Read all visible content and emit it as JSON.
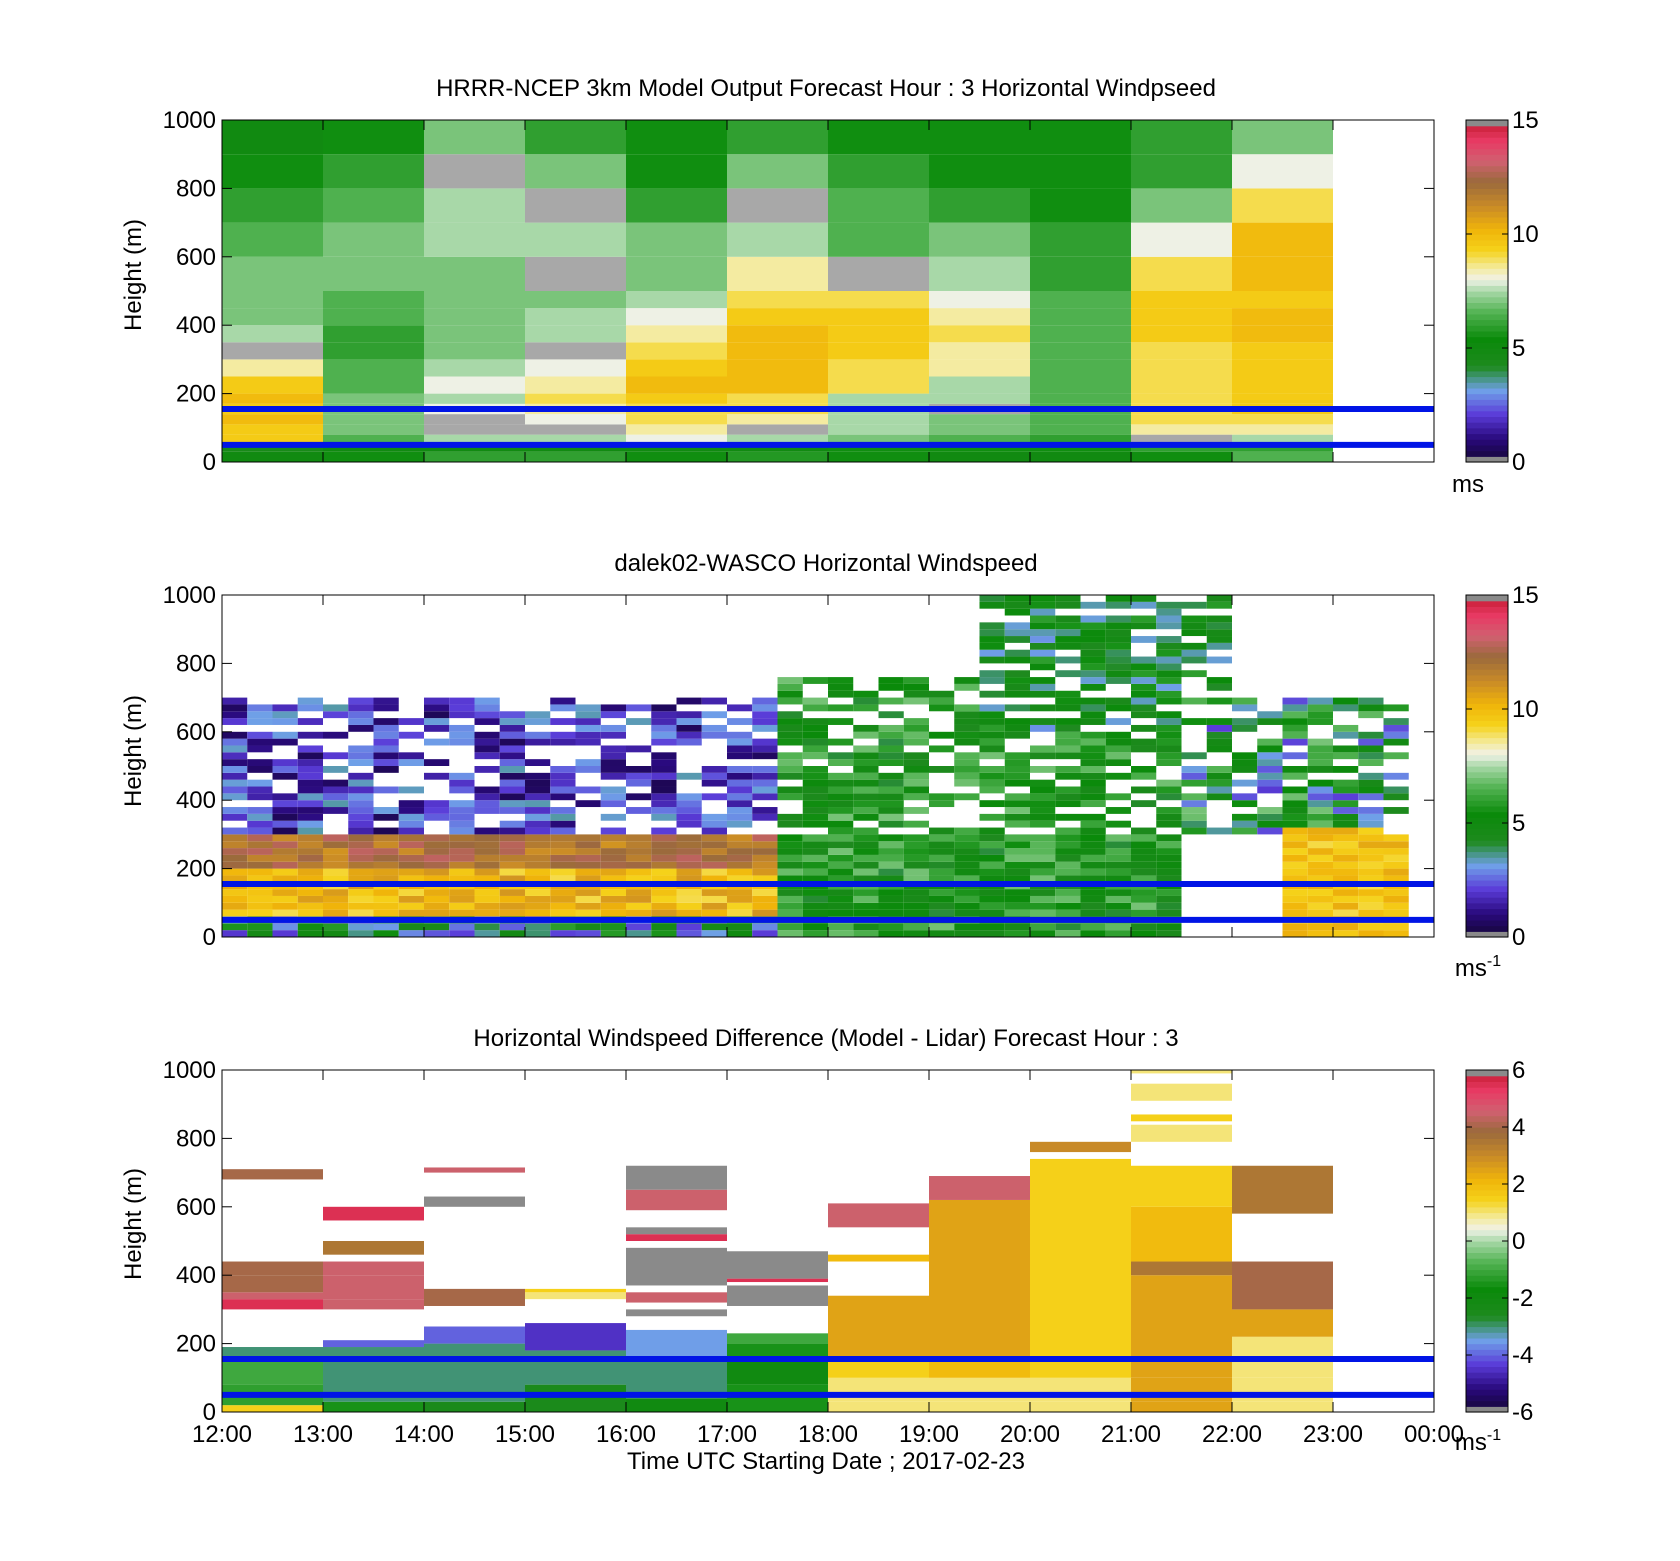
{
  "figure": {
    "xlabel": "Time UTC  Starting Date ; 2017-02-23",
    "x_tick_labels": [
      "12:00",
      "13:00",
      "14:00",
      "15:00",
      "16:00",
      "17:00",
      "18:00",
      "19:00",
      "20:00",
      "21:00",
      "22:00",
      "23:00",
      "00:00"
    ],
    "y_tick_labels": [
      "0",
      "200",
      "400",
      "600",
      "800",
      "1000"
    ],
    "guide_lines_m": [
      50,
      155
    ],
    "guide_line_color": "#0014e6"
  },
  "chart_data": [
    {
      "type": "heatmap",
      "title": "HRRR-NCEP 3km Model Output   Forecast Hour : 3 Horizontal Windpseed",
      "ylabel": "Height (m)",
      "ylim": [
        0,
        1000
      ],
      "xlim": [
        12,
        24
      ],
      "colorbar": {
        "min": 0,
        "max": 15,
        "ticks": [
          "0",
          "5",
          "10",
          "15"
        ],
        "unit": "ms",
        "unit_sup": ""
      },
      "legend": "colorbar-right",
      "grid": false,
      "hours": [
        12,
        13,
        14,
        15,
        16,
        17,
        18,
        19,
        20,
        21,
        22
      ],
      "height_bins_m": [
        [
          0,
          30
        ],
        [
          30,
          50
        ],
        [
          50,
          80
        ],
        [
          80,
          110
        ],
        [
          110,
          140
        ],
        [
          140,
          170
        ],
        [
          170,
          200
        ],
        [
          200,
          250
        ],
        [
          250,
          300
        ],
        [
          300,
          350
        ],
        [
          350,
          400
        ],
        [
          400,
          450
        ],
        [
          450,
          500
        ],
        [
          500,
          600
        ],
        [
          600,
          700
        ],
        [
          700,
          800
        ],
        [
          800,
          900
        ],
        [
          900,
          1000
        ]
      ],
      "values_ms": [
        [
          5.0,
          5.5,
          6.0,
          6.0,
          5.5,
          5.8,
          5.5,
          5.0,
          5.0,
          5.5,
          6.5
        ],
        [
          4.5,
          5.0,
          5.0,
          5.0,
          5.0,
          5.0,
          5.5,
          5.5,
          5.5,
          6.0,
          6.0
        ],
        [
          9.5,
          6.5,
          7.5,
          7.5,
          8.0,
          7.5,
          7.0,
          6.5,
          6.0,
          0.1,
          7.5
        ],
        [
          9.5,
          7.0,
          0.1,
          0.1,
          8.5,
          0.1,
          7.5,
          7.0,
          6.5,
          8.5,
          8.5
        ],
        [
          10.0,
          7.0,
          0.1,
          8.0,
          9.0,
          8.5,
          7.5,
          7.0,
          6.5,
          9.0,
          9.0
        ],
        [
          9.5,
          7.0,
          8.0,
          8.5,
          9.0,
          9.0,
          7.5,
          0.1,
          6.5,
          9.0,
          9.5
        ],
        [
          10.0,
          7.0,
          7.5,
          9.0,
          9.5,
          9.0,
          7.5,
          7.5,
          6.5,
          9.0,
          9.5
        ],
        [
          9.5,
          6.5,
          8.0,
          8.5,
          10.0,
          10.0,
          9.0,
          7.5,
          6.5,
          9.0,
          9.5
        ],
        [
          8.5,
          6.5,
          7.5,
          8.0,
          9.5,
          10.0,
          9.0,
          8.5,
          6.5,
          9.0,
          9.5
        ],
        [
          0.1,
          6.0,
          7.0,
          0.1,
          9.0,
          10.0,
          9.5,
          8.5,
          6.5,
          9.0,
          9.5
        ],
        [
          7.5,
          6.0,
          7.0,
          7.5,
          8.5,
          10.0,
          9.5,
          9.0,
          6.5,
          9.5,
          10.0
        ],
        [
          7.0,
          6.5,
          7.0,
          7.5,
          8.0,
          9.5,
          9.5,
          8.5,
          6.5,
          9.5,
          10.0
        ],
        [
          7.0,
          6.5,
          7.0,
          7.0,
          7.5,
          9.0,
          9.0,
          8.0,
          6.5,
          9.5,
          9.5
        ],
        [
          7.0,
          7.0,
          7.0,
          0.1,
          7.0,
          8.5,
          0.1,
          7.5,
          6.0,
          9.0,
          10.0
        ],
        [
          6.5,
          7.0,
          7.5,
          7.5,
          7.0,
          7.5,
          6.5,
          7.0,
          6.0,
          8.0,
          10.0
        ],
        [
          6.0,
          6.5,
          7.5,
          0.1,
          6.0,
          0.1,
          6.5,
          6.0,
          5.5,
          7.0,
          9.0
        ],
        [
          5.5,
          6.0,
          0.1,
          7.0,
          5.5,
          7.0,
          6.0,
          5.5,
          5.5,
          6.0,
          8.0
        ],
        [
          5.0,
          5.5,
          7.0,
          6.0,
          5.5,
          6.0,
          5.5,
          5.5,
          5.5,
          6.0,
          7.0
        ]
      ]
    },
    {
      "type": "heatmap",
      "title": "dalek02-WASCO  Horizontal Windspeed",
      "ylabel": "Height (m)",
      "ylim": [
        0,
        1000
      ],
      "xlim": [
        12,
        24
      ],
      "colorbar": {
        "min": 0,
        "max": 15,
        "ticks": [
          "0",
          "5",
          "10",
          "15"
        ],
        "unit": "ms",
        "unit_sup": "-1"
      },
      "legend": "colorbar-right",
      "grid": false,
      "column_width_h": 0.25,
      "row_height_m": 20,
      "regimes": [
        {
          "time_range_utc": [
            12.0,
            17.5
          ],
          "height_range_m": [
            0,
            60
          ],
          "speed_range_ms": [
            2,
            6
          ],
          "description_only": true
        },
        {
          "time_range_utc": [
            12.0,
            17.5
          ],
          "height_range_m": [
            60,
            200
          ],
          "speed_range_ms": [
            9,
            11
          ]
        },
        {
          "time_range_utc": [
            12.0,
            17.5
          ],
          "height_range_m": [
            200,
            300
          ],
          "speed_range_ms": [
            11,
            13
          ]
        },
        {
          "time_range_utc": [
            12.0,
            18.0
          ],
          "height_range_m": [
            300,
            700
          ],
          "speed_range_ms": [
            0.5,
            3.5
          ]
        },
        {
          "time_range_utc": [
            17.5,
            21.5
          ],
          "height_range_m": [
            0,
            750
          ],
          "speed_range_ms": [
            4,
            7
          ]
        },
        {
          "time_range_utc": [
            19.5,
            22.0
          ],
          "height_range_m": [
            600,
            1000
          ],
          "speed_range_ms": [
            3,
            6
          ]
        },
        {
          "time_range_utc": [
            21.5,
            23.75
          ],
          "height_range_m": [
            300,
            700
          ],
          "speed_range_ms": [
            2,
            7
          ]
        },
        {
          "time_range_utc": [
            22.5,
            23.75
          ],
          "height_range_m": [
            0,
            320
          ],
          "speed_range_ms": [
            9,
            10.5
          ]
        }
      ]
    },
    {
      "type": "heatmap",
      "title": "Horizontal Windspeed Difference (Model - Lidar) Forecast Hour : 3",
      "ylabel": "Height (m)",
      "ylim": [
        0,
        1000
      ],
      "xlim": [
        12,
        24
      ],
      "colorbar": {
        "min": -6,
        "max": 6,
        "ticks": [
          "-6",
          "-4",
          "-2",
          "0",
          "2",
          "4",
          "6"
        ],
        "unit": "ms",
        "unit_sup": "-1"
      },
      "legend": "colorbar-right",
      "grid": false,
      "segments": [
        {
          "hour": 12,
          "ranges_m": [
            [
              0,
              20,
              1.5
            ],
            [
              20,
              80,
              -1.2
            ],
            [
              80,
              150,
              -1.0
            ],
            [
              150,
              190,
              -3.0
            ],
            [
              300,
              330,
              5.5
            ],
            [
              330,
              350,
              4.5
            ],
            [
              350,
              400,
              4.0
            ],
            [
              400,
              440,
              4.0
            ],
            [
              680,
              710,
              4.0
            ]
          ]
        },
        {
          "hour": 13,
          "ranges_m": [
            [
              0,
              30,
              -1.5
            ],
            [
              30,
              190,
              -3.0
            ],
            [
              190,
              210,
              -4.0
            ],
            [
              300,
              330,
              4.5
            ],
            [
              330,
              400,
              4.5
            ],
            [
              400,
              440,
              4.5
            ],
            [
              460,
              500,
              3.5
            ],
            [
              560,
              600,
              5.5
            ]
          ]
        },
        {
          "hour": 14,
          "ranges_m": [
            [
              0,
              30,
              -2.5
            ],
            [
              30,
              200,
              -3.0
            ],
            [
              200,
              250,
              -4.0
            ],
            [
              310,
              360,
              4.0
            ],
            [
              600,
              630,
              6.0
            ],
            [
              700,
              715,
              4.5
            ]
          ]
        },
        {
          "hour": 15,
          "ranges_m": [
            [
              0,
              80,
              -2.5
            ],
            [
              80,
              180,
              -3.0
            ],
            [
              180,
              260,
              -4.5
            ],
            [
              330,
              350,
              1.0
            ],
            [
              350,
              360,
              1.5
            ]
          ]
        },
        {
          "hour": 16,
          "ranges_m": [
            [
              0,
              40,
              -2.0
            ],
            [
              40,
              160,
              -3.0
            ],
            [
              160,
              240,
              -3.5
            ],
            [
              280,
              300,
              6.0
            ],
            [
              320,
              350,
              4.5
            ],
            [
              370,
              480,
              6.0
            ],
            [
              500,
              520,
              5.5
            ],
            [
              520,
              540,
              6.0
            ],
            [
              590,
              650,
              4.5
            ],
            [
              650,
              720,
              6.0
            ]
          ]
        },
        {
          "hour": 17,
          "ranges_m": [
            [
              0,
              80,
              -1.5
            ],
            [
              80,
              160,
              -2.0
            ],
            [
              160,
              200,
              -1.5
            ],
            [
              200,
              230,
              -1.0
            ],
            [
              310,
              370,
              6.0
            ],
            [
              380,
              390,
              5.5
            ],
            [
              390,
              470,
              6.0
            ]
          ]
        },
        {
          "hour": 18,
          "ranges_m": [
            [
              0,
              30,
              1.0
            ],
            [
              30,
              100,
              1.0
            ],
            [
              100,
              150,
              1.5
            ],
            [
              150,
              340,
              2.5
            ],
            [
              440,
              460,
              2.0
            ],
            [
              540,
              610,
              4.5
            ]
          ]
        },
        {
          "hour": 19,
          "ranges_m": [
            [
              0,
              30,
              1.0
            ],
            [
              30,
              100,
              1.0
            ],
            [
              100,
              150,
              2.0
            ],
            [
              150,
              620,
              2.5
            ],
            [
              620,
              690,
              4.5
            ]
          ]
        },
        {
          "hour": 20,
          "ranges_m": [
            [
              0,
              30,
              1.0
            ],
            [
              30,
              100,
              1.0
            ],
            [
              100,
              150,
              1.5
            ],
            [
              150,
              740,
              1.5
            ],
            [
              760,
              790,
              3.0
            ]
          ]
        },
        {
          "hour": 21,
          "ranges_m": [
            [
              0,
              30,
              2.5
            ],
            [
              30,
              100,
              2.5
            ],
            [
              100,
              150,
              2.5
            ],
            [
              150,
              400,
              2.5
            ],
            [
              400,
              440,
              3.5
            ],
            [
              440,
              600,
              2.0
            ],
            [
              600,
              720,
              1.5
            ],
            [
              790,
              840,
              1.0
            ],
            [
              850,
              870,
              1.5
            ],
            [
              910,
              960,
              1.0
            ],
            [
              990,
              1000,
              1.0
            ]
          ]
        },
        {
          "hour": 22,
          "ranges_m": [
            [
              0,
              30,
              1.0
            ],
            [
              30,
              100,
              1.0
            ],
            [
              100,
              150,
              1.0
            ],
            [
              150,
              220,
              1.0
            ],
            [
              220,
              300,
              2.5
            ],
            [
              300,
              440,
              4.0
            ],
            [
              580,
              720,
              3.5
            ]
          ]
        }
      ]
    }
  ]
}
